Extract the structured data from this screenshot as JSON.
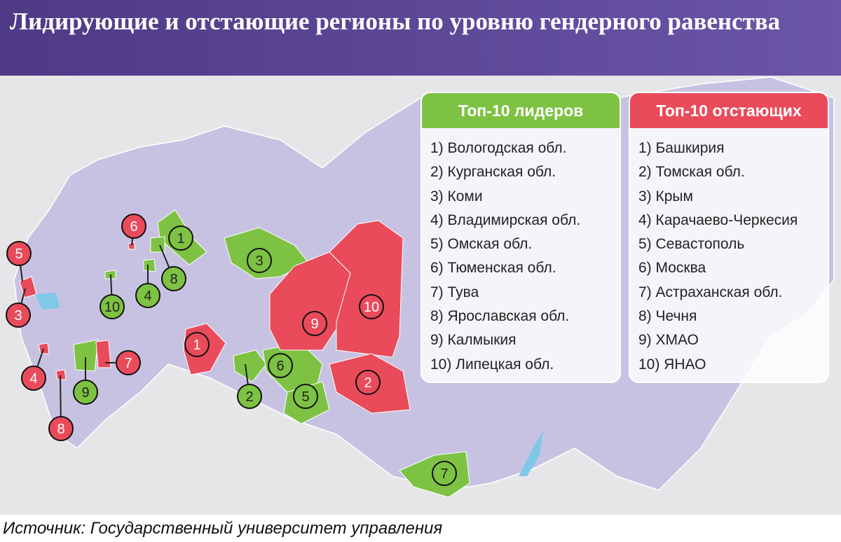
{
  "header": {
    "title": "Лидирующие и отстающие регионы по уровню гендерного равенства"
  },
  "leaders": {
    "heading": "Топ-10 лидеров",
    "items": [
      "1) Вологодская обл.",
      "2) Курганская обл.",
      "3) Коми",
      "4) Владимирская обл.",
      "5) Омская обл.",
      "6) Тюменская обл.",
      "7) Тува",
      "8) Ярославская обл.",
      "9) Калмыкия",
      "10) Липецкая обл."
    ]
  },
  "laggards": {
    "heading": "Топ-10 отстающих",
    "items": [
      "1) Башкирия",
      "2) Томская обл.",
      "3) Крым",
      "4) Карачаево-Черкесия",
      "5) Севастополь",
      "6) Москва",
      "7) Астраханская обл.",
      "8) Чечня",
      "9) ХМАО",
      "10) ЯНАО"
    ]
  },
  "map_labels": {
    "leaders": [
      "1",
      "2",
      "3",
      "4",
      "5",
      "6",
      "7",
      "8",
      "9",
      "10"
    ],
    "laggards": [
      "1",
      "2",
      "3",
      "4",
      "5",
      "6",
      "7",
      "8",
      "9",
      "10"
    ]
  },
  "source": "Источник: Государственный университет управления"
}
